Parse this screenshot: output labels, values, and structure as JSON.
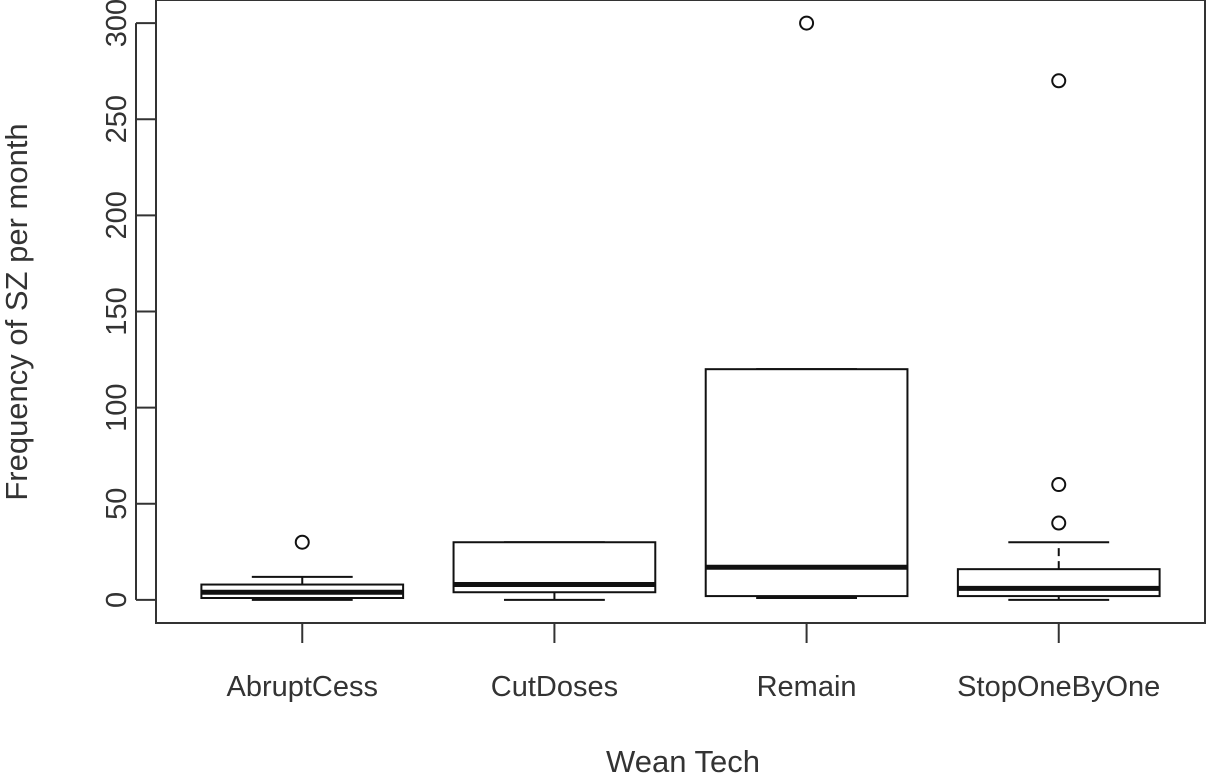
{
  "chart_data": {
    "type": "boxplot",
    "xlabel": "Wean Tech",
    "ylabel": "Frequency of SZ per month",
    "ylim": [
      -12,
      312
    ],
    "y_ticks": [
      0,
      50,
      100,
      150,
      200,
      250,
      300
    ],
    "y_tick_labels": [
      "0",
      "50",
      "100",
      "150",
      "200",
      "250",
      "300"
    ],
    "grid": false,
    "categories": [
      "AbruptCess",
      "CutDoses",
      "Remain",
      "StopOneByOne"
    ],
    "boxes": [
      {
        "category": "AbruptCess",
        "whisker_low": 0,
        "q1": 1,
        "median": 4,
        "q3": 8,
        "whisker_high": 12,
        "outliers": [
          30
        ]
      },
      {
        "category": "CutDoses",
        "whisker_low": 0,
        "q1": 4,
        "median": 8,
        "q3": 30,
        "whisker_high": 30,
        "outliers": []
      },
      {
        "category": "Remain",
        "whisker_low": 1,
        "q1": 2,
        "median": 17,
        "q3": 120,
        "whisker_high": 120,
        "outliers": [
          300
        ]
      },
      {
        "category": "StopOneByOne",
        "whisker_low": 0,
        "q1": 2,
        "median": 6,
        "q3": 16,
        "whisker_high": 30,
        "outliers": [
          40,
          60,
          270
        ]
      }
    ]
  }
}
